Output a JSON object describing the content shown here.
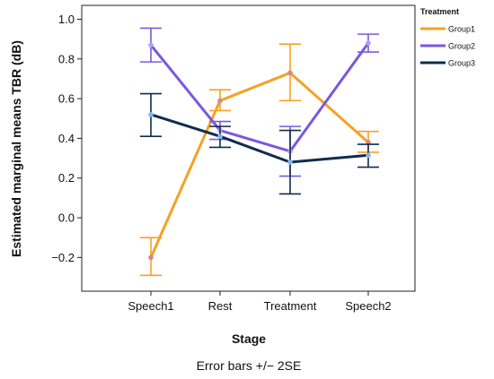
{
  "chart_data": {
    "type": "line",
    "xlabel": "Stage",
    "ylabel": "Estimated marginal means TBR (dB)",
    "footnote": "Error bars +/− 2SE",
    "categories": [
      "Speech1",
      "Rest",
      "Treatment",
      "Speech2"
    ],
    "ylim": [
      -0.37,
      1.07
    ],
    "yticks": [
      1.0,
      0.8,
      0.6,
      0.4,
      0.2,
      0.0,
      -0.2
    ],
    "ytick_labels": [
      "1.0",
      "0.8",
      "0.6",
      "0.4",
      "0.2",
      "0.0",
      "−0.2"
    ],
    "grid": false,
    "legend": {
      "title": "Treatment",
      "position": "top-right"
    },
    "series": [
      {
        "name": "Group1",
        "color": "#f5a124",
        "marker_color": "#d38a8a",
        "values": [
          -0.2,
          0.59,
          0.73,
          0.38
        ],
        "err_low": [
          -0.29,
          0.54,
          0.59,
          0.33
        ],
        "err_high": [
          -0.1,
          0.645,
          0.875,
          0.435
        ]
      },
      {
        "name": "Group2",
        "color": "#7b57e0",
        "marker_color": "#b0a0ee",
        "values": [
          0.87,
          0.44,
          0.335,
          0.88
        ],
        "err_low": [
          0.785,
          0.395,
          0.21,
          0.835
        ],
        "err_high": [
          0.955,
          0.485,
          0.46,
          0.925
        ]
      },
      {
        "name": "Group3",
        "color": "#0f2c4e",
        "marker_color": "#7fb6e6",
        "values": [
          0.52,
          0.41,
          0.28,
          0.315
        ],
        "err_low": [
          0.41,
          0.355,
          0.12,
          0.255
        ],
        "err_high": [
          0.625,
          0.46,
          0.44,
          0.37
        ]
      }
    ]
  }
}
